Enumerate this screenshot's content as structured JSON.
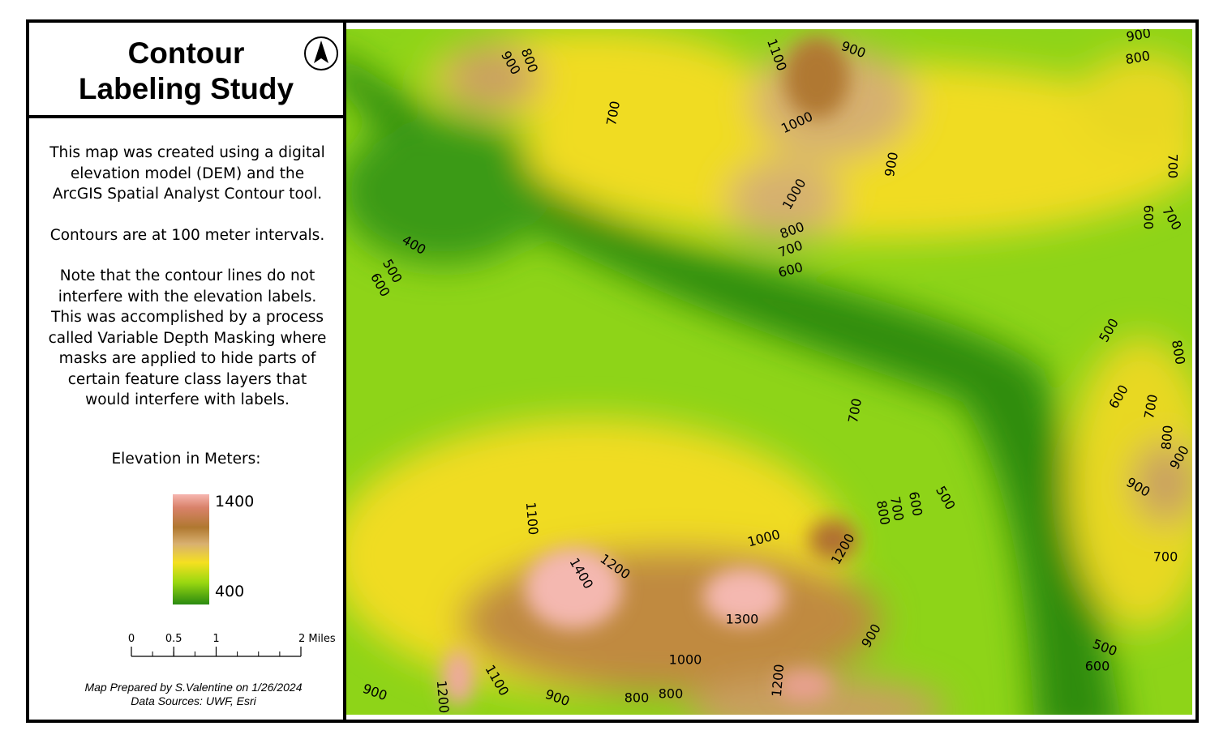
{
  "title_lines": [
    "Contour",
    "Labeling Study"
  ],
  "description": [
    "This map was created using a digital elevation model (DEM) and the ArcGIS Spatial Analyst Contour tool.",
    "Contours are at 100 meter intervals.",
    "Note that the contour lines do not interfere with the elevation labels. This was accomplished by a process called Variable Depth Masking where masks are applied to hide parts of certain feature class layers that would interfere with labels."
  ],
  "legend": {
    "title": "Elevation in Meters:",
    "high": 1400,
    "low": 400
  },
  "scale_bar": {
    "ticks": [
      0,
      0.5,
      1,
      {
        "value": 2,
        "label": "2 Miles"
      }
    ]
  },
  "credits": [
    "Map Prepared by S.Valentine on 1/26/2024",
    "Data Sources: UWF, Esri"
  ],
  "contour_labels": [
    900,
    800,
    700,
    1100,
    900,
    1000,
    900,
    1000,
    800,
    700,
    600,
    900,
    800,
    700,
    600,
    700,
    400,
    500,
    600,
    500,
    800,
    600,
    700,
    800,
    900,
    900,
    700,
    700,
    800,
    700,
    600,
    500,
    1100,
    1000,
    1200,
    1400,
    1200,
    1300,
    1000,
    900,
    1200,
    800,
    800,
    900,
    1100,
    1200,
    900,
    500,
    600
  ]
}
